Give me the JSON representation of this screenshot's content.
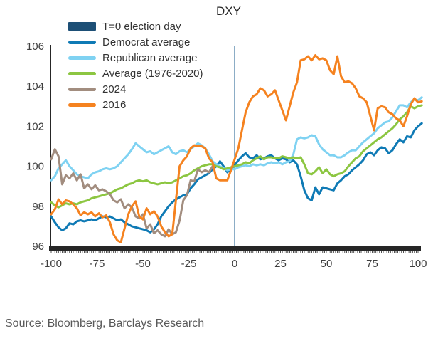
{
  "source": "Source: Bloomberg, Barclays Research",
  "chart_data": {
    "type": "line",
    "title": "DXY",
    "xlabel": "",
    "ylabel": "",
    "xlim": [
      -100,
      100
    ],
    "ylim": [
      96,
      106
    ],
    "x_ticks": [
      -100,
      -75,
      -50,
      -25,
      0,
      25,
      50,
      75,
      100
    ],
    "y_ticks": [
      96,
      98,
      100,
      102,
      104,
      106
    ],
    "grid": false,
    "legend_position": "top-left",
    "x_start": -100,
    "x_step": 2,
    "axis_color": "#262626",
    "t0_marker": {
      "label": "T=0 election day",
      "swatch_color": "#1d4f76",
      "line_color": "#4f81a8",
      "x": 0
    },
    "series": [
      {
        "name": "Democrat average",
        "color": "#0f7ab5",
        "values": [
          97.5,
          97.2,
          96.95,
          96.8,
          96.9,
          97.15,
          97.1,
          97.25,
          97.3,
          97.25,
          97.3,
          97.35,
          97.3,
          97.4,
          97.5,
          97.45,
          97.5,
          97.4,
          97.3,
          97.35,
          97.2,
          97.1,
          97.0,
          96.95,
          96.9,
          96.85,
          96.8,
          96.7,
          96.85,
          97.1,
          97.5,
          97.75,
          98.0,
          98.2,
          98.35,
          98.45,
          98.55,
          98.6,
          98.9,
          99.1,
          99.35,
          99.45,
          99.55,
          99.65,
          99.85,
          100.0,
          100.25,
          100.0,
          99.7,
          99.85,
          100.05,
          100.3,
          100.5,
          100.65,
          100.45,
          100.4,
          100.55,
          100.35,
          100.4,
          100.5,
          100.55,
          100.4,
          100.3,
          100.4,
          100.35,
          100.2,
          100.3,
          100.1,
          99.5,
          98.8,
          98.4,
          98.3,
          98.95,
          98.6,
          98.95,
          98.9,
          98.85,
          98.8,
          99.15,
          99.3,
          99.5,
          99.6,
          99.8,
          99.95,
          100.1,
          100.3,
          100.6,
          100.7,
          100.55,
          100.8,
          100.95,
          100.9,
          100.65,
          100.8,
          101.1,
          101.35,
          101.2,
          101.5,
          101.45,
          101.8,
          102.0,
          102.15
        ]
      },
      {
        "name": "Republican average",
        "color": "#7fd2f2",
        "values": [
          99.3,
          99.5,
          99.9,
          100.1,
          100.3,
          100.0,
          99.8,
          99.6,
          99.5,
          99.45,
          99.4,
          99.6,
          99.7,
          99.75,
          99.85,
          99.9,
          99.85,
          99.9,
          100.0,
          100.2,
          100.4,
          100.6,
          100.85,
          101.15,
          101.0,
          100.85,
          100.7,
          100.75,
          100.6,
          100.7,
          100.8,
          100.9,
          101.0,
          100.7,
          100.6,
          100.75,
          100.8,
          100.7,
          100.85,
          101.0,
          101.15,
          101.05,
          100.9,
          100.6,
          100.25,
          100.1,
          100.0,
          99.9,
          99.8,
          99.85,
          99.85,
          99.95,
          100.0,
          100.05,
          100.0,
          100.1,
          100.05,
          100.1,
          100.05,
          100.15,
          100.2,
          100.15,
          100.2,
          100.1,
          100.2,
          100.25,
          100.6,
          101.35,
          101.45,
          101.4,
          101.45,
          101.55,
          101.5,
          101.1,
          100.85,
          100.7,
          100.55,
          100.55,
          100.45,
          100.45,
          100.55,
          100.7,
          100.8,
          100.8,
          101.0,
          101.2,
          101.35,
          101.5,
          101.65,
          101.9,
          102.05,
          102.2,
          102.25,
          102.45,
          102.75,
          103.05,
          103.05,
          102.95,
          103.2,
          103.35,
          103.3,
          103.45
        ]
      },
      {
        "name": "Average (1976-2020)",
        "color": "#8cc641",
        "values": [
          98.2,
          98.05,
          97.95,
          98.05,
          98.15,
          98.1,
          98.15,
          98.1,
          98.2,
          98.25,
          98.3,
          98.4,
          98.45,
          98.5,
          98.55,
          98.6,
          98.65,
          98.75,
          98.85,
          98.9,
          99.0,
          99.1,
          99.15,
          99.25,
          99.3,
          99.25,
          99.3,
          99.2,
          99.15,
          99.1,
          99.15,
          99.2,
          99.15,
          99.2,
          99.3,
          99.4,
          99.5,
          99.55,
          99.65,
          99.8,
          99.9,
          100.0,
          100.05,
          100.1,
          100.1,
          100.0,
          99.95,
          99.85,
          99.9,
          99.95,
          100.0,
          100.05,
          100.1,
          100.2,
          100.15,
          100.3,
          100.4,
          100.5,
          100.35,
          100.45,
          100.45,
          100.4,
          100.4,
          100.5,
          100.45,
          100.4,
          100.45,
          100.4,
          100.45,
          100.1,
          99.65,
          99.6,
          99.75,
          99.95,
          99.65,
          99.85,
          99.6,
          99.5,
          99.6,
          99.65,
          99.75,
          100.0,
          100.2,
          100.4,
          100.5,
          100.75,
          100.9,
          101.05,
          101.2,
          101.35,
          101.45,
          101.6,
          101.75,
          101.9,
          102.1,
          102.35,
          102.5,
          102.7,
          103.0,
          102.9,
          103.0,
          103.05
        ]
      },
      {
        "name": "2024",
        "color": "#a28d7f",
        "values": [
          100.35,
          100.85,
          100.5,
          99.1,
          99.55,
          99.4,
          99.65,
          99.3,
          99.6,
          98.9,
          99.1,
          98.85,
          99.05,
          98.8,
          98.85,
          98.75,
          98.6,
          98.3,
          98.2,
          98.35,
          97.9,
          98.1,
          97.95,
          97.5,
          97.4,
          97.6,
          96.9,
          97.1,
          96.65,
          96.8,
          96.6,
          96.5,
          96.85,
          96.6,
          96.7,
          97.3,
          98.3,
          98.55,
          99.3,
          99.25,
          99.85,
          99.7,
          99.8,
          99.7,
          100.0
        ]
      },
      {
        "name": "2016",
        "color": "#f5821f",
        "values": [
          97.6,
          97.85,
          98.35,
          98.1,
          98.3,
          98.25,
          98.1,
          97.9,
          97.55,
          97.7,
          97.6,
          97.7,
          97.5,
          97.65,
          97.45,
          97.55,
          97.2,
          96.6,
          96.3,
          96.2,
          96.9,
          97.6,
          98.0,
          98.25,
          97.5,
          97.35,
          97.9,
          97.6,
          97.75,
          97.5,
          97.0,
          96.7,
          96.5,
          96.6,
          98.3,
          100.0,
          100.3,
          100.5,
          100.9,
          101.05,
          101.0,
          101.0,
          100.9,
          100.4,
          100.2,
          99.4,
          99.3,
          99.3,
          99.3,
          99.8,
          100.35,
          100.9,
          101.8,
          102.7,
          103.2,
          103.5,
          103.6,
          103.9,
          103.8,
          103.5,
          103.6,
          103.8,
          103.3,
          102.8,
          102.3,
          103.0,
          103.7,
          104.2,
          105.3,
          105.35,
          105.5,
          105.3,
          105.55,
          105.35,
          105.4,
          105.3,
          104.8,
          104.6,
          105.5,
          104.5,
          104.2,
          104.25,
          104.15,
          103.9,
          103.5,
          103.4,
          103.2,
          102.5,
          101.8,
          102.9,
          103.0,
          102.95,
          102.7,
          102.6,
          102.4,
          102.3,
          102.0,
          102.5,
          103.1,
          103.4,
          103.2,
          103.25
        ]
      }
    ]
  }
}
